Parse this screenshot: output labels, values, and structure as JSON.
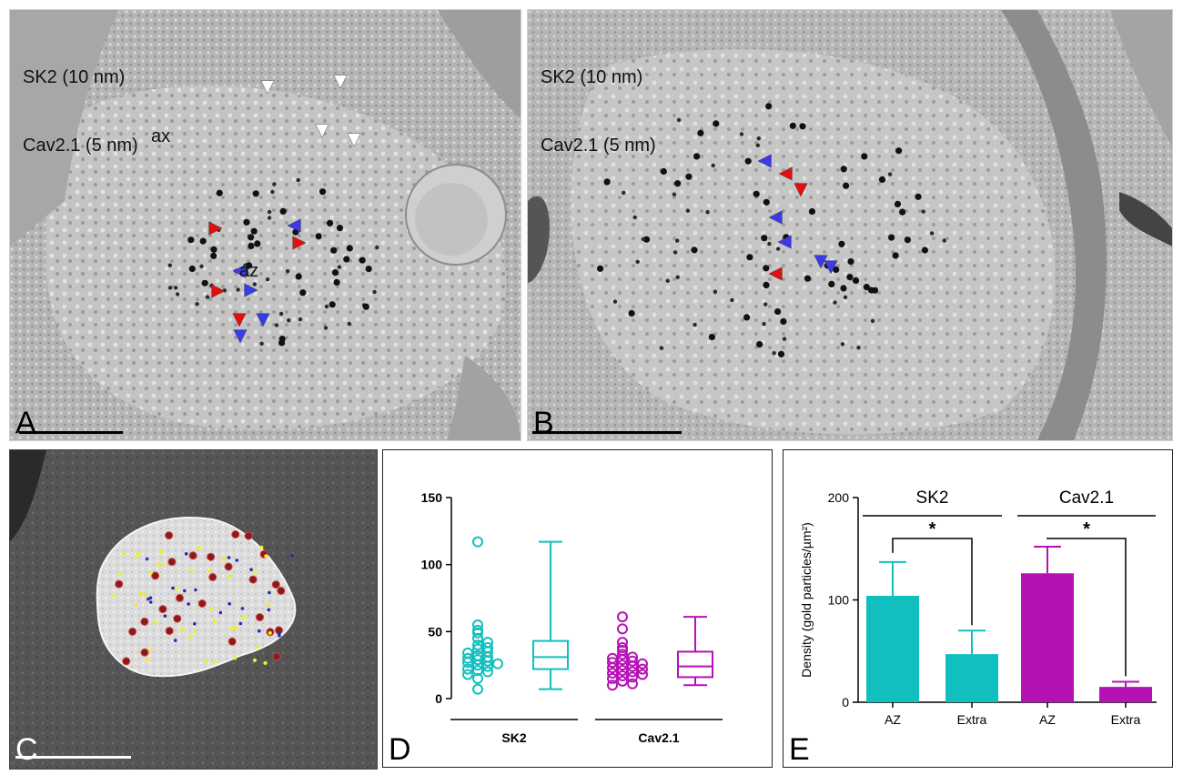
{
  "panels": {
    "a": {
      "letter": "A",
      "title_line1": "SK2 (10 nm)",
      "title_line2": "Cav2.1 (5 nm)",
      "label_ax": "ax",
      "label_az": "az"
    },
    "b": {
      "letter": "B",
      "title_line1": "SK2 (10 nm)",
      "title_line2": "Cav2.1 (5 nm)"
    },
    "c": {
      "letter": "C"
    },
    "d": {
      "letter": "D"
    },
    "e": {
      "letter": "E"
    }
  },
  "colors": {
    "sk2": "#12bfbf",
    "cav21": "#b512b5",
    "arrow_red": "#e01010",
    "arrow_blue": "#3a3ae8",
    "arrow_white": "#ffffff",
    "dot_red": "#8b1a1a",
    "dot_yellow": "#f2f21a",
    "dot_blue": "#2a2ab0"
  },
  "chart_data": [
    {
      "panel": "D",
      "type": "scatter+box",
      "title": "",
      "xlabel": "",
      "ylabel": "",
      "ylim": [
        0,
        150
      ],
      "yticks": [
        0,
        50,
        100,
        150
      ],
      "groups": [
        {
          "name": "SK2",
          "color": "#12bfbf",
          "points": [
            117,
            55,
            51,
            49,
            45,
            42,
            40,
            38,
            37,
            35,
            34,
            32,
            31,
            30,
            29,
            28,
            27,
            26,
            25,
            24,
            22,
            21,
            20,
            18,
            15,
            7
          ],
          "box": {
            "min": 7,
            "q1": 22,
            "median": 31,
            "q3": 43,
            "max": 117
          }
        },
        {
          "name": "Cav2.1",
          "color": "#b512b5",
          "points": [
            61,
            52,
            42,
            38,
            36,
            33,
            31,
            30,
            29,
            28,
            27,
            26,
            25,
            24,
            23,
            22,
            21,
            20,
            19,
            18,
            17,
            16,
            15,
            13,
            11,
            10
          ],
          "box": {
            "min": 10,
            "q1": 16,
            "median": 24,
            "q3": 35,
            "max": 61
          }
        }
      ]
    },
    {
      "panel": "E",
      "type": "bar",
      "title": "",
      "ylabel": "Density (gold particles/µm²)",
      "ylim": [
        0,
        200
      ],
      "yticks": [
        0,
        100,
        200
      ],
      "groups": [
        {
          "name": "SK2",
          "color": "#12bfbf",
          "categories": [
            "AZ",
            "Extra"
          ],
          "values": [
            104,
            47
          ],
          "errors": [
            33,
            23
          ]
        },
        {
          "name": "Cav2.1",
          "color": "#b512b5",
          "categories": [
            "AZ",
            "Extra"
          ],
          "values": [
            126,
            15
          ],
          "errors": [
            26,
            5
          ]
        }
      ],
      "significance": [
        "*",
        "*"
      ]
    }
  ]
}
